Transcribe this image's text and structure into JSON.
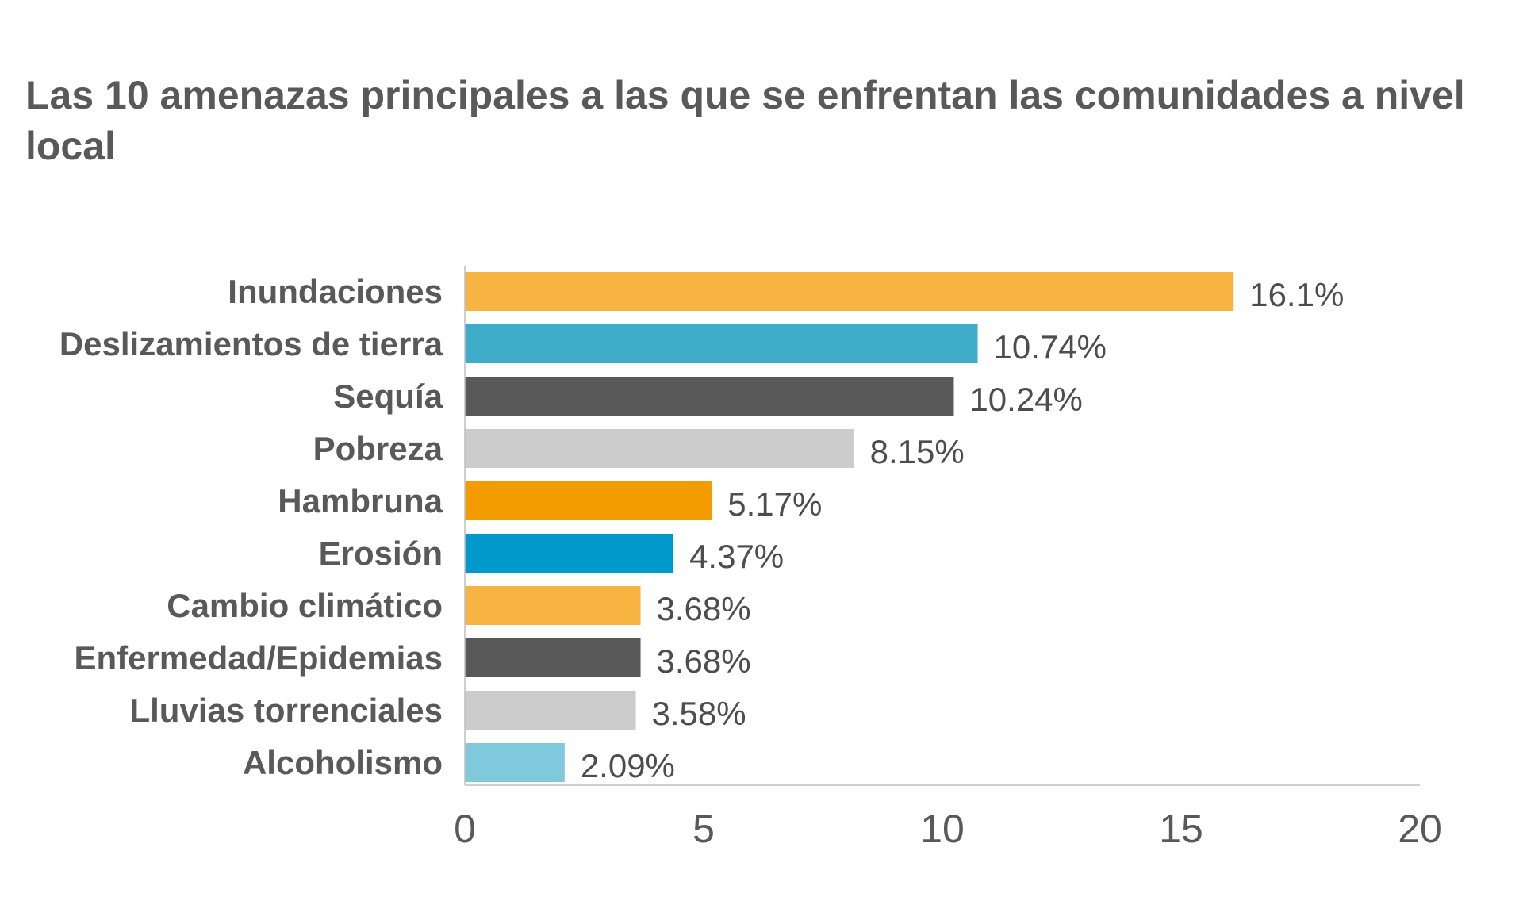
{
  "chart_data": {
    "type": "bar",
    "orientation": "horizontal",
    "title": "Las 10 amenazas principales a las que se enfrentan las comunidades a nivel local",
    "categories": [
      "Inundaciones",
      "Deslizamientos de tierra",
      "Sequía",
      "Pobreza",
      "Hambruna",
      "Erosión",
      "Cambio climático",
      "Enfermedad/Epidemias",
      "Lluvias torrenciales",
      "Alcoholismo"
    ],
    "values": [
      16.1,
      10.74,
      10.24,
      8.15,
      5.17,
      4.37,
      3.68,
      3.68,
      3.58,
      2.09
    ],
    "value_labels": [
      "16.1%",
      "10.74%",
      "10.24%",
      "8.15%",
      "5.17%",
      "4.37%",
      "3.68%",
      "3.68%",
      "3.58%",
      "2.09%"
    ],
    "colors": [
      "#f7b441",
      "#3fadca",
      "#595959",
      "#cccccc",
      "#f39c00",
      "#0099cc",
      "#f7b441",
      "#595959",
      "#cccccc",
      "#80c8dc"
    ],
    "xlim": [
      0,
      20
    ],
    "xticks": [
      0,
      5,
      10,
      15,
      20
    ],
    "grid": false,
    "legend": "none"
  }
}
